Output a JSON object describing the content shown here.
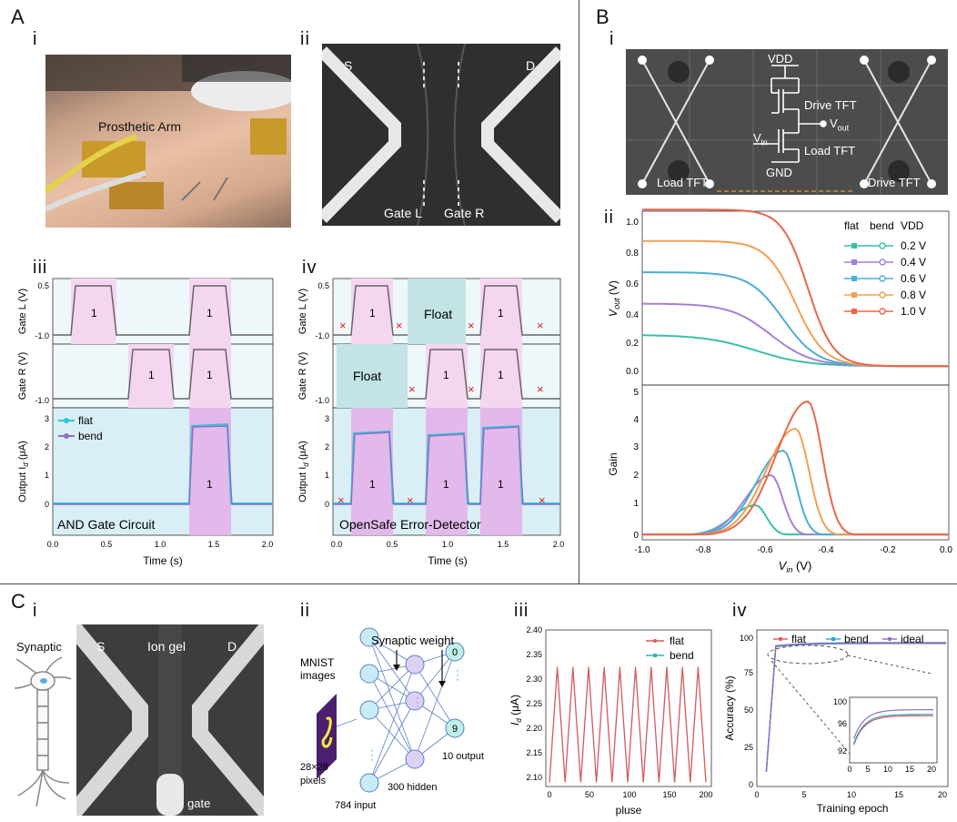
{
  "panels": {
    "A": "A",
    "B": "B",
    "C": "C",
    "Ai": "i",
    "Aii": "ii",
    "Aiii": "iii",
    "Aiv": "iv",
    "Bi": "i",
    "Bii": "ii",
    "Ci": "i",
    "Cii": "ii",
    "Ciii": "iii",
    "Civ": "iv"
  },
  "Ai": {
    "label": "Prosthetic Arm"
  },
  "Aii": {
    "s": "S",
    "d": "D",
    "gate_l": "Gate L",
    "gate_r": "Gate R"
  },
  "Aiii": {
    "ylabel_top": "Gate L (V)",
    "ylabel_mid": "Gate R (V)",
    "ylabel_bot": "Output I",
    "ylabel_bot_sub": "d",
    "ylabel_bot_unit": " (μA)",
    "xlabel": "Time (s)",
    "caption": "AND Gate Circuit",
    "legend": [
      "flat",
      "bend"
    ],
    "one": "1",
    "ticks_gate": [
      "0.5",
      "-1.0"
    ],
    "ticks_out": [
      "3",
      "2",
      "1",
      "0"
    ],
    "ticks_x": [
      "0.0",
      "0.5",
      "1.0",
      "1.5",
      "2.0"
    ]
  },
  "Aiv": {
    "ylabel_top": "Gate L (V)",
    "ylabel_mid": "Gate R (V)",
    "ylabel_bot": "Output I",
    "ylabel_bot_sub": "d",
    "ylabel_bot_unit": " (μA)",
    "xlabel": "Time (s)",
    "caption": "OpenSafe Error-Detector",
    "float": "Float",
    "one": "1",
    "cross": "×",
    "ticks_gate": [
      "0.5",
      "-1.0"
    ],
    "ticks_out": [
      "3",
      "2",
      "1",
      "0"
    ],
    "ticks_x": [
      "0.0",
      "0.5",
      "1.0",
      "1.5",
      "2.0"
    ]
  },
  "Bi": {
    "vdd": "VDD",
    "drive": "Drive TFT",
    "vout": "V",
    "vout_sub": "out",
    "vin": "V",
    "vin_sub": "in",
    "load": "Load TFT",
    "gnd": "GND",
    "load_left": "Load TFT",
    "drive_right": "Drive TFT"
  },
  "Bii": {
    "ylabel_top": "V",
    "ylabel_top_sub": "out",
    "ylabel_top_unit": " (V)",
    "ylabel_bot": "Gain",
    "xlabel": "V",
    "xlabel_sub": "in",
    "xlabel_unit": " (V)",
    "legend_head": [
      "flat",
      "bend",
      "VDD"
    ],
    "legend_vdd": [
      "0.2 V",
      "0.4 V",
      "0.6 V",
      "0.8 V",
      "1.0 V"
    ],
    "ticks_top": [
      "1.0",
      "0.8",
      "0.6",
      "0.4",
      "0.2",
      "0.0"
    ],
    "ticks_bot": [
      "5",
      "4",
      "3",
      "2",
      "1",
      "0"
    ],
    "ticks_x": [
      "-1.0",
      "-0.8",
      "-0.6",
      "-0.4",
      "-0.2",
      "0.0"
    ],
    "colors": [
      "#3bbfa8",
      "#a77fd6",
      "#4aaed8",
      "#f0a050",
      "#e8674a"
    ]
  },
  "Ci": {
    "synaptic": "Synaptic",
    "s": "S",
    "d": "D",
    "gel": "Ion gel",
    "gate": "gate"
  },
  "Cii": {
    "weight": "Synaptic weight",
    "mnist": [
      "MNIST",
      "images"
    ],
    "px": [
      "28×28",
      "pixels"
    ],
    "input": "784 input",
    "hidden": "300 hidden",
    "output": "10 output",
    "o0": "0",
    "o9": "9"
  },
  "Ciii": {
    "ylabel": "I",
    "ylabel_sub": "d",
    "ylabel_unit": " (μA)",
    "xlabel": "pluse",
    "legend": [
      "flat",
      "bend"
    ],
    "ticks_y": [
      "2.40",
      "2.35",
      "2.30",
      "2.25",
      "2.20",
      "2.15",
      "2.10"
    ],
    "ticks_x": [
      "0",
      "50",
      "100",
      "150",
      "200"
    ]
  },
  "Civ": {
    "ylabel": "Accuracy (%)",
    "xlabel": "Training epoch",
    "legend": [
      "flat",
      "bend",
      "ideal"
    ],
    "ticks_y": [
      "100",
      "75",
      "50",
      "25",
      "0"
    ],
    "ticks_x": [
      "0",
      "5",
      "10",
      "15",
      "20"
    ],
    "inset_y": [
      "100",
      "96",
      "92"
    ],
    "inset_x": [
      "0",
      "5",
      "10",
      "15",
      "20"
    ]
  },
  "chart_data": [
    {
      "type": "line",
      "panel": "A-iii",
      "xlabel": "Time (s)",
      "xlim": [
        0,
        2.2
      ],
      "series": [
        {
          "name": "flat"
        },
        {
          "name": "bend"
        }
      ]
    },
    {
      "type": "line",
      "panel": "B-ii-top",
      "ylim": [
        0,
        1.0
      ],
      "xlim": [
        -1.0,
        0.0
      ],
      "series": [
        {
          "name": "0.2 V",
          "values": [
            0.2
          ]
        },
        {
          "name": "0.4 V",
          "values": [
            0.4
          ]
        },
        {
          "name": "0.6 V",
          "values": [
            0.6
          ]
        },
        {
          "name": "0.8 V",
          "values": [
            0.8
          ]
        },
        {
          "name": "1.0 V",
          "values": [
            1.0
          ]
        }
      ]
    },
    {
      "type": "line",
      "panel": "B-ii-bottom",
      "ylim": [
        0,
        5
      ],
      "xlim": [
        -1.0,
        0.0
      ],
      "series": [
        {
          "name": "0.2 V",
          "peak": [
            -0.63,
            1.1
          ]
        },
        {
          "name": "0.4 V",
          "peak": [
            -0.58,
            2.2
          ]
        },
        {
          "name": "0.6 V",
          "peak": [
            -0.54,
            3.1
          ]
        },
        {
          "name": "0.8 V",
          "peak": [
            -0.5,
            3.9
          ]
        },
        {
          "name": "1.0 V",
          "peak": [
            -0.46,
            4.9
          ]
        }
      ]
    },
    {
      "type": "line",
      "panel": "C-iii",
      "xlabel": "pluse",
      "ylim": [
        2.08,
        2.4
      ],
      "xlim": [
        0,
        200
      ],
      "series": [
        {
          "name": "flat"
        },
        {
          "name": "bend"
        }
      ]
    },
    {
      "type": "line",
      "panel": "C-iv",
      "xlabel": "Training epoch",
      "ylabel": "Accuracy (%)",
      "ylim": [
        0,
        100
      ],
      "xlim": [
        0,
        20
      ],
      "series": [
        {
          "name": "flat"
        },
        {
          "name": "bend"
        },
        {
          "name": "ideal"
        }
      ]
    }
  ]
}
